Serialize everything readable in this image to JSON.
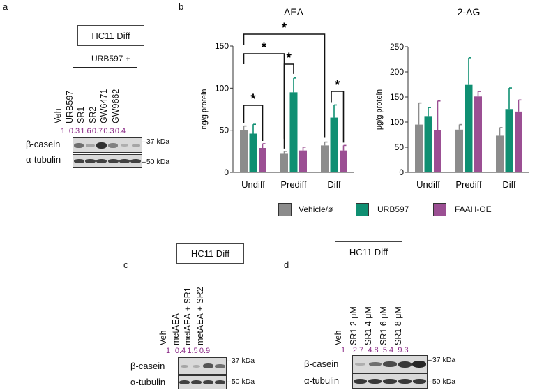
{
  "panels": {
    "a": {
      "letter": "a",
      "title": "HC11 Diff",
      "group_label": "URB597 +",
      "lanes": [
        "Veh",
        "URB597",
        "SR1",
        "SR2",
        "GW6471",
        "GW9662"
      ],
      "quant": [
        "1",
        "0.3",
        "1.6",
        "0.7",
        "0.3",
        "0.4"
      ],
      "rows": [
        {
          "label": "β-casein",
          "marker": "37 kDa"
        },
        {
          "label": "α-tubulin",
          "marker": "50 kDa"
        }
      ]
    },
    "b": {
      "letter": "b"
    },
    "c": {
      "letter": "c",
      "title": "HC11 Diff",
      "lanes": [
        "Veh",
        "metAEA",
        "metAEA + SR1",
        "metAEA + SR2"
      ],
      "quant": [
        "1",
        "0.4",
        "1.5",
        "0.9"
      ],
      "rows": [
        {
          "label": "β-casein",
          "marker": "37 kDa"
        },
        {
          "label": "α-tubulin",
          "marker": "50 kDa"
        }
      ]
    },
    "d": {
      "letter": "d",
      "title": "HC11 Diff",
      "lanes": [
        "Veh",
        "SR1 2 μM",
        "SR1 4 μM",
        "SR1 6 μM",
        "SR1 8 μM"
      ],
      "quant": [
        "1",
        "2.7",
        "4.8",
        "5.4",
        "9.3"
      ],
      "rows": [
        {
          "label": "β-casein",
          "marker": "37 kDa"
        },
        {
          "label": "α-tubulin",
          "marker": "50 kDa"
        }
      ]
    }
  },
  "legend": {
    "items": [
      {
        "label": "Vehicle/ø",
        "color": "#8c8c8c"
      },
      {
        "label": "URB597",
        "color": "#0f8f72"
      },
      {
        "label": "FAAH-OE",
        "color": "#9b4f93"
      }
    ]
  },
  "chart_data": [
    {
      "type": "bar",
      "title": "AEA",
      "ylabel": "ng/g protein",
      "ylim": [
        0,
        150
      ],
      "yticks": [
        0,
        50,
        100,
        150
      ],
      "categories": [
        "Undiff",
        "Prediff",
        "Diff"
      ],
      "series": [
        {
          "name": "Vehicle/ø",
          "values": [
            50,
            22,
            32
          ],
          "errors": [
            5,
            3,
            4
          ]
        },
        {
          "name": "URB597",
          "values": [
            46,
            95,
            65
          ],
          "errors": [
            11,
            17,
            15
          ]
        },
        {
          "name": "FAAH-OE",
          "values": [
            29,
            26,
            26
          ],
          "errors": [
            5,
            4,
            6
          ]
        }
      ],
      "significance": [
        "*",
        "*",
        "*",
        "*",
        "*"
      ]
    },
    {
      "type": "bar",
      "title": "2-AG",
      "ylabel": "μg/g protein",
      "ylim": [
        0,
        250
      ],
      "yticks": [
        0,
        50,
        100,
        150,
        200,
        250
      ],
      "categories": [
        "Undiff",
        "Prediff",
        "Diff"
      ],
      "series": [
        {
          "name": "Vehicle/ø",
          "values": [
            95,
            85,
            73
          ],
          "errors": [
            43,
            10,
            16
          ]
        },
        {
          "name": "URB597",
          "values": [
            112,
            174,
            126
          ],
          "errors": [
            17,
            54,
            42
          ]
        },
        {
          "name": "FAAH-OE",
          "values": [
            84,
            151,
            121
          ],
          "errors": [
            58,
            10,
            23
          ]
        }
      ]
    }
  ]
}
